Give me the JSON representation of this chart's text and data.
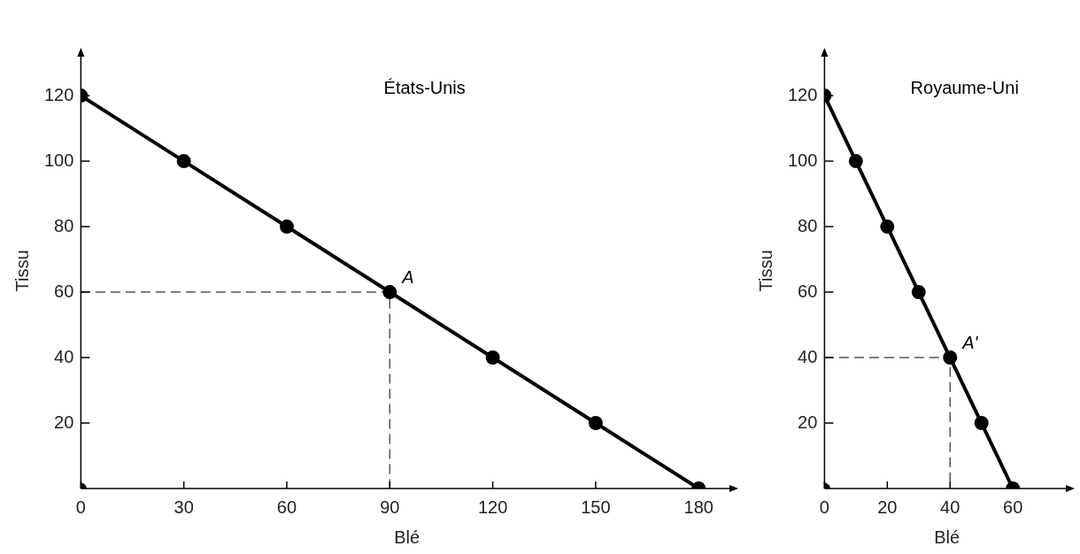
{
  "chart_data": [
    {
      "type": "line",
      "title": "États-Unis",
      "xlabel": "Blé",
      "ylabel": "Tissu",
      "xlim": [
        0,
        190
      ],
      "ylim": [
        0,
        133
      ],
      "xticks": [
        0,
        30,
        60,
        90,
        120,
        150,
        180
      ],
      "yticks": [
        20,
        40,
        60,
        80,
        100,
        120
      ],
      "grid": false,
      "legend": false,
      "marker": "circle",
      "series": [
        {
          "color": "#000000",
          "x": [
            0,
            30,
            60,
            90,
            120,
            150,
            180
          ],
          "values": [
            120,
            100,
            80,
            60,
            40,
            20,
            0
          ]
        },
        {
          "type": "scatter",
          "color": "#000000",
          "x": [
            0
          ],
          "values": [
            0
          ]
        },
        {
          "type": "line",
          "line_style": "dashed",
          "marker": "none",
          "color": "#555555",
          "x": [
            0,
            90,
            90
          ],
          "values": [
            60,
            60,
            0
          ]
        }
      ],
      "annotations": [
        {
          "text": "A",
          "x": 90,
          "y": 60
        }
      ]
    },
    {
      "type": "line",
      "title": "Royaume-Uni",
      "xlabel": "Blé",
      "ylabel": "Tissu",
      "xlim": [
        0,
        78
      ],
      "ylim": [
        0,
        133
      ],
      "xticks": [
        0,
        20,
        40,
        60
      ],
      "yticks": [
        20,
        40,
        60,
        80,
        100,
        120
      ],
      "grid": false,
      "legend": false,
      "marker": "circle",
      "series": [
        {
          "color": "#000000",
          "x": [
            0,
            10,
            20,
            30,
            40,
            50,
            60
          ],
          "values": [
            120,
            100,
            80,
            60,
            40,
            20,
            0
          ]
        },
        {
          "type": "scatter",
          "color": "#000000",
          "x": [
            0
          ],
          "values": [
            0
          ]
        },
        {
          "type": "line",
          "line_style": "dashed",
          "marker": "none",
          "color": "#555555",
          "x": [
            0,
            40,
            40
          ],
          "values": [
            40,
            40,
            0
          ]
        }
      ],
      "annotations": [
        {
          "text": "A'",
          "x": 40,
          "y": 40
        }
      ]
    }
  ]
}
